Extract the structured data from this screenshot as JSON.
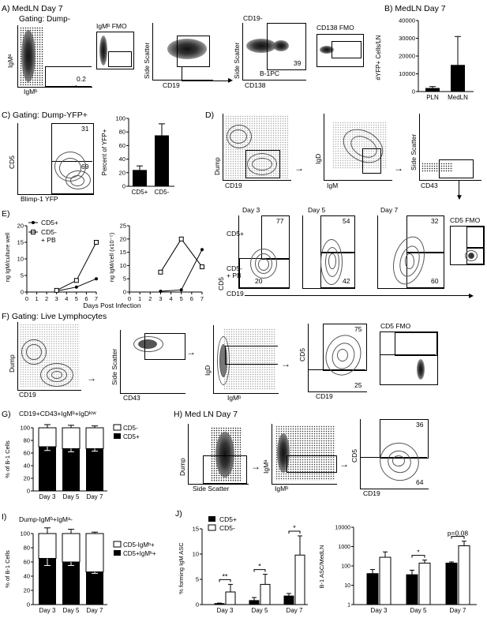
{
  "panelA": {
    "label": "A) MedLN Day 7",
    "gating": "Gating: Dump-",
    "yaxis": "IgMᵃ",
    "xaxis": "IgMᵇ",
    "gate_value": "0.2",
    "fmo": "IgMᵇ FMO",
    "p2_y": "Side Scatter",
    "p2_x": "CD19",
    "p3_title": "CD19-",
    "p3_y": "Side Scatter",
    "p3_x": "CD138",
    "p3_value": "39",
    "p3_gate": "B-1PC",
    "fmo2": "CD138 FMO"
  },
  "panelB": {
    "label": "B) MedLN Day 7",
    "ylabel": "#YFP+ Cells/LN"
  },
  "panelC": {
    "label": "C) Gating: Dump-YFP+",
    "y": "CD5",
    "x": "Blimp-1 YFP",
    "v_top": "31",
    "v_bot": "69",
    "ylabel": "Percent of YFP+"
  },
  "panelD": {
    "label": "D)",
    "p1_y": "Dump",
    "p1_x": "CD19",
    "p2_y": "IgD",
    "p2_x": "IgM",
    "p3_y": "Side Scatter",
    "p3_x": "CD43",
    "days": [
      "Day 3",
      "Day 5",
      "Day 7"
    ],
    "fmo": "CD5 FMO",
    "top_vals": [
      "77",
      "54",
      "32"
    ],
    "bot_vals": [
      "20",
      "42",
      "60"
    ],
    "cd5pos": "CD5+",
    "cd5neg": "CD5-\n+ PB",
    "y": "CD5",
    "x": "CD19"
  },
  "panelE": {
    "label": "E)",
    "legend1": "CD5+",
    "legend2": "CD5-",
    "legend2b": "+ PB",
    "y1": "ng IgM/culture well",
    "y2": "ng IgM/cell (x10⁻⁵)",
    "xlabel": "Days Post Infection"
  },
  "panelF": {
    "label": "F) Gating: Live Lymphocytes",
    "p1_y": "Dump",
    "p1_x": "CD19",
    "p2_y": "Side Scatter",
    "p2_x": "CD43",
    "p3_y": "IgD",
    "p3_x": "IgMᵇ",
    "p4_y": "CD5",
    "p4_x": "CD19",
    "v_top": "75",
    "v_bot": "25",
    "fmo": "CD5 FMO"
  },
  "panelG": {
    "label": "G)",
    "title": "CD19+CD43+IgMᵇ+IgDˡᵒʷ",
    "ylabel": "% of B-1 Cells",
    "legend1": "CD5-",
    "legend2": "CD5+"
  },
  "panelH": {
    "label": "H) Med LN Day 7",
    "p1_y": "Dump",
    "p1_x": "Side Scatter",
    "p2_y": "IgMᵃ",
    "p2_x": "IgMᵇ",
    "p3_y": "CD5",
    "p3_x": "CD19",
    "v_top": "36",
    "v_bot": "64"
  },
  "panelI": {
    "label": "I)",
    "title": "Dump-IgMᵇ+IgMᵃ-",
    "ylabel": "% of B-1 Cells",
    "legend1": "CD5-IgMᵇ+",
    "legend2": "CD5+IgMᵇ+"
  },
  "panelJ": {
    "label": "J)",
    "ylabel1": "% forming IgM ASC",
    "ylabel2": "B-1 ASC/MedLN",
    "legend1": "CD5+",
    "legend2": "CD5-",
    "sig1": "**",
    "sig2": "*",
    "sig3": "*",
    "sig4": "*",
    "sig5": "p=0.08"
  },
  "chart_data": [
    {
      "id": "B",
      "type": "bar",
      "categories": [
        "PLN",
        "MedLN"
      ],
      "values": [
        2000,
        15000
      ],
      "errors": [
        800,
        16000
      ],
      "ylim": [
        0,
        40000
      ],
      "yticks": [
        "0",
        "10000",
        "20000",
        "30000",
        "40000"
      ],
      "ylabel": "#YFP+ Cells/LN"
    },
    {
      "id": "C",
      "type": "bar",
      "categories": [
        "CD5+",
        "CD5-"
      ],
      "values": [
        24,
        75
      ],
      "errors": [
        6,
        17
      ],
      "ylim": [
        0,
        100
      ],
      "yticks": [
        "0",
        "20",
        "40",
        "60",
        "80",
        "100"
      ],
      "ylabel": "Percent of YFP+"
    },
    {
      "id": "E1",
      "type": "line",
      "x": [
        3,
        5,
        7
      ],
      "series": [
        {
          "name": "CD5+",
          "values": [
            0.3,
            1.5,
            4
          ]
        },
        {
          "name": "CD5- + PB",
          "values": [
            0.5,
            3.5,
            15
          ]
        }
      ],
      "ylim": [
        0,
        20
      ],
      "yticks": [
        "0",
        "5",
        "10",
        "15",
        "20"
      ],
      "xticks": [
        "0",
        "1",
        "2",
        "3",
        "4",
        "5",
        "6",
        "7"
      ],
      "ylabel": "ng IgM/culture well"
    },
    {
      "id": "E2",
      "type": "line",
      "x": [
        3,
        5,
        7
      ],
      "series": [
        {
          "name": "CD5+",
          "values": [
            0.3,
            0.8,
            16
          ]
        },
        {
          "name": "CD5- + PB",
          "values": [
            7.5,
            20,
            9.5
          ]
        }
      ],
      "ylim": [
        0,
        25
      ],
      "yticks": [
        "0",
        "5",
        "10",
        "15",
        "20",
        "25"
      ],
      "xticks": [
        "0",
        "1",
        "2",
        "3",
        "4",
        "5",
        "6",
        "7"
      ]
    },
    {
      "id": "G",
      "type": "bar",
      "categories": [
        "Day 3",
        "Day 5",
        "Day 7"
      ],
      "series": [
        {
          "name": "CD5+",
          "values": [
            70,
            67,
            67
          ]
        },
        {
          "name": "CD5-",
          "values": [
            30,
            33,
            33
          ]
        }
      ],
      "errors_low": [
        6,
        5,
        4
      ],
      "errors_top": [
        5,
        4,
        3
      ],
      "ylim": [
        0,
        100
      ],
      "yticks": [
        "0",
        "20",
        "40",
        "60",
        "80",
        "100"
      ]
    },
    {
      "id": "I",
      "type": "bar",
      "categories": [
        "Day 3",
        "Day 5",
        "Day 7"
      ],
      "series": [
        {
          "name": "CD5+IgMᵇ+",
          "values": [
            65,
            60,
            46
          ]
        },
        {
          "name": "CD5-IgMᵇ+",
          "values": [
            35,
            40,
            54
          ]
        }
      ],
      "errors_low": [
        10,
        5,
        2
      ],
      "errors_top": [
        8,
        6,
        2
      ],
      "ylim": [
        0,
        100
      ],
      "yticks": [
        "0",
        "20",
        "40",
        "60",
        "80",
        "100"
      ]
    },
    {
      "id": "J1",
      "type": "bar",
      "categories": [
        "Day 3",
        "Day 5",
        "Day 7"
      ],
      "series": [
        {
          "name": "CD5+",
          "values": [
            0.2,
            0.8,
            1.7
          ]
        },
        {
          "name": "CD5-",
          "values": [
            2.5,
            4,
            9.8
          ]
        }
      ],
      "errors": [
        [
          0.1,
          0.6,
          0.5
        ],
        [
          1.5,
          2,
          3.8
        ]
      ],
      "ylim": [
        0,
        15
      ],
      "yticks": [
        "0",
        "5",
        "10",
        "15"
      ]
    },
    {
      "id": "J2",
      "type": "bar",
      "categories": [
        "Day 3",
        "Day 5",
        "Day 7"
      ],
      "series": [
        {
          "name": "CD5+",
          "values": [
            40,
            35,
            140
          ]
        },
        {
          "name": "CD5-",
          "values": [
            280,
            140,
            1100
          ]
        }
      ],
      "errors": [
        [
          25,
          25,
          20
        ],
        [
          250,
          60,
          800
        ]
      ],
      "ylog": true,
      "ylim": [
        1,
        10000
      ],
      "yticks": [
        "1",
        "10",
        "100",
        "1000",
        "10000"
      ]
    }
  ]
}
